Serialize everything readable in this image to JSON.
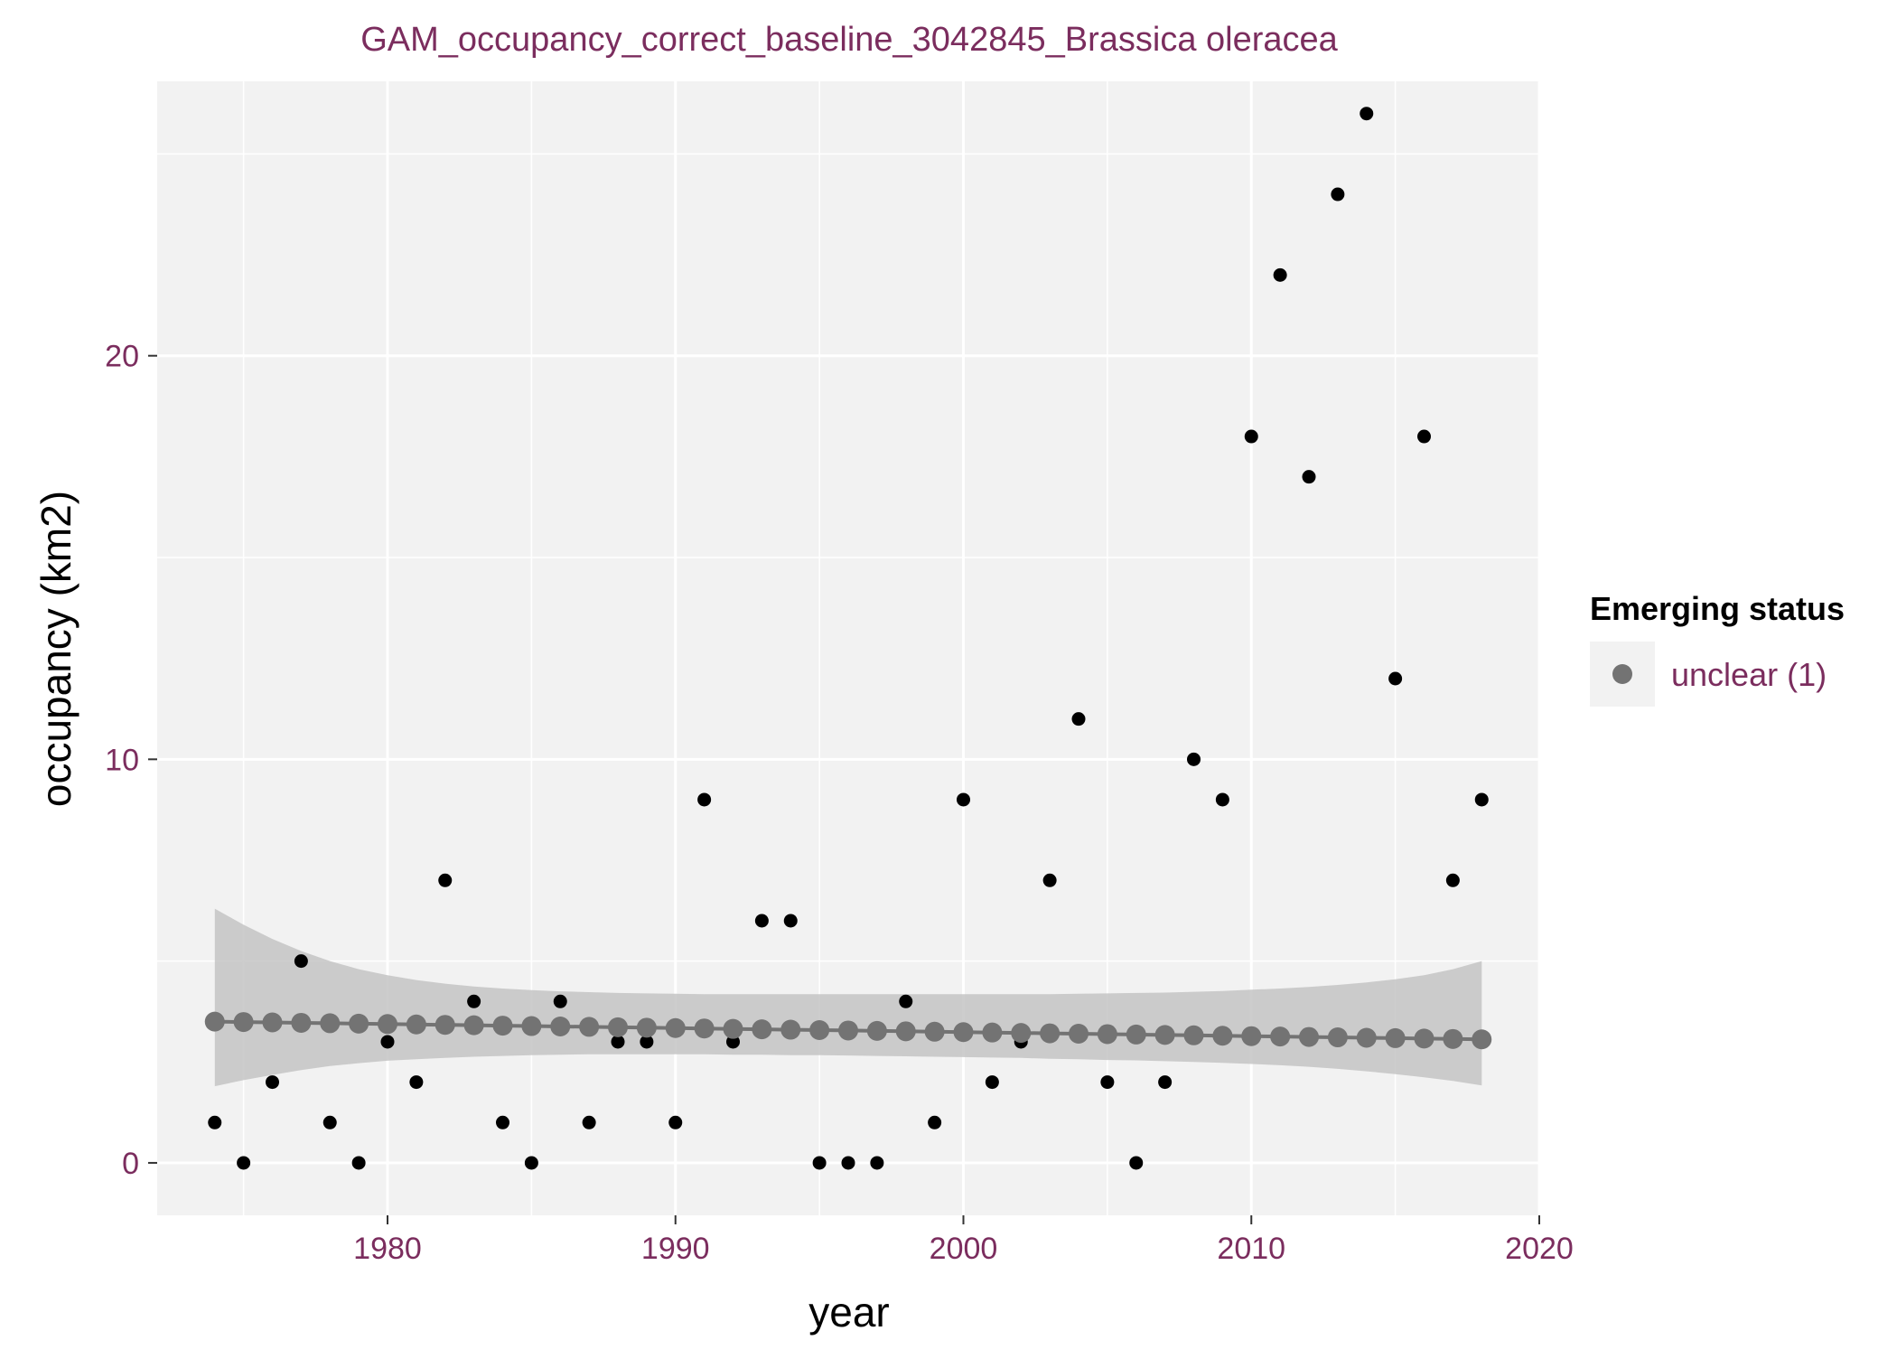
{
  "chart_data": {
    "type": "scatter",
    "title": "GAM_occupancy_correct_baseline_3042845_Brassica oleracea",
    "xlabel": "year",
    "ylabel": "occupancy (km2)",
    "xlim": [
      1972,
      2020
    ],
    "ylim": [
      -1.3,
      26.8
    ],
    "x_ticks": [
      1980,
      1990,
      2000,
      2010,
      2020
    ],
    "y_ticks": [
      0,
      10,
      20
    ],
    "grid": true,
    "legend": {
      "title": "Emerging status",
      "position": "right",
      "items": [
        {
          "label": "unclear (1)",
          "color": "#737373"
        }
      ]
    },
    "colors": {
      "panel": "#f2f2f2",
      "grid": "#ffffff",
      "observed": "#000000",
      "fit": "#737373",
      "ribbon": "#c4c4c4",
      "tick_label": "#7b2d5e",
      "title": "#7b2d5e"
    },
    "series": [
      {
        "kind": "observed",
        "x": [
          1974,
          1975,
          1976,
          1977,
          1978,
          1979,
          1980,
          1981,
          1982,
          1983,
          1984,
          1985,
          1986,
          1987,
          1988,
          1989,
          1990,
          1991,
          1992,
          1993,
          1994,
          1995,
          1996,
          1997,
          1998,
          1999,
          2000,
          2001,
          2002,
          2003,
          2004,
          2005,
          2006,
          2007,
          2008,
          2009,
          2010,
          2011,
          2012,
          2013,
          2014,
          2015,
          2016,
          2017,
          2018
        ],
        "y": [
          1,
          0,
          2,
          5,
          1,
          0,
          3,
          2,
          7,
          4,
          1,
          0,
          4,
          1,
          3,
          3,
          1,
          9,
          3,
          6,
          6,
          0,
          0,
          0,
          4,
          1,
          9,
          2,
          3,
          7,
          11,
          2,
          0,
          2,
          10,
          9,
          18,
          22,
          17,
          24,
          26,
          12,
          18,
          7,
          9
        ]
      },
      {
        "kind": "fit",
        "name": "unclear (1)",
        "x": [
          1974,
          1975,
          1976,
          1977,
          1978,
          1979,
          1980,
          1981,
          1982,
          1983,
          1984,
          1985,
          1986,
          1987,
          1988,
          1989,
          1990,
          1991,
          1992,
          1993,
          1994,
          1995,
          1996,
          1997,
          1998,
          1999,
          2000,
          2001,
          2002,
          2003,
          2004,
          2005,
          2006,
          2007,
          2008,
          2009,
          2010,
          2011,
          2012,
          2013,
          2014,
          2015,
          2016,
          2017,
          2018
        ],
        "y": [
          3.5,
          3.49,
          3.48,
          3.47,
          3.46,
          3.45,
          3.44,
          3.43,
          3.42,
          3.41,
          3.4,
          3.39,
          3.38,
          3.37,
          3.36,
          3.35,
          3.34,
          3.33,
          3.32,
          3.31,
          3.3,
          3.29,
          3.28,
          3.27,
          3.26,
          3.25,
          3.24,
          3.23,
          3.22,
          3.21,
          3.2,
          3.19,
          3.18,
          3.17,
          3.16,
          3.15,
          3.14,
          3.13,
          3.12,
          3.11,
          3.1,
          3.09,
          3.08,
          3.07,
          3.06
        ],
        "lower": [
          1.9,
          2.05,
          2.18,
          2.3,
          2.4,
          2.47,
          2.53,
          2.57,
          2.6,
          2.63,
          2.65,
          2.67,
          2.68,
          2.69,
          2.69,
          2.69,
          2.69,
          2.69,
          2.68,
          2.68,
          2.67,
          2.67,
          2.66,
          2.65,
          2.64,
          2.63,
          2.62,
          2.61,
          2.6,
          2.58,
          2.57,
          2.55,
          2.54,
          2.52,
          2.5,
          2.48,
          2.45,
          2.42,
          2.38,
          2.33,
          2.27,
          2.2,
          2.12,
          2.03,
          1.92
        ],
        "upper": [
          6.3,
          5.9,
          5.55,
          5.25,
          5.0,
          4.8,
          4.65,
          4.53,
          4.44,
          4.37,
          4.32,
          4.28,
          4.25,
          4.23,
          4.21,
          4.2,
          4.19,
          4.18,
          4.18,
          4.18,
          4.18,
          4.18,
          4.18,
          4.18,
          4.18,
          4.18,
          4.18,
          4.18,
          4.18,
          4.18,
          4.19,
          4.2,
          4.21,
          4.22,
          4.24,
          4.26,
          4.29,
          4.32,
          4.36,
          4.41,
          4.47,
          4.55,
          4.65,
          4.8,
          5.0
        ]
      }
    ]
  }
}
